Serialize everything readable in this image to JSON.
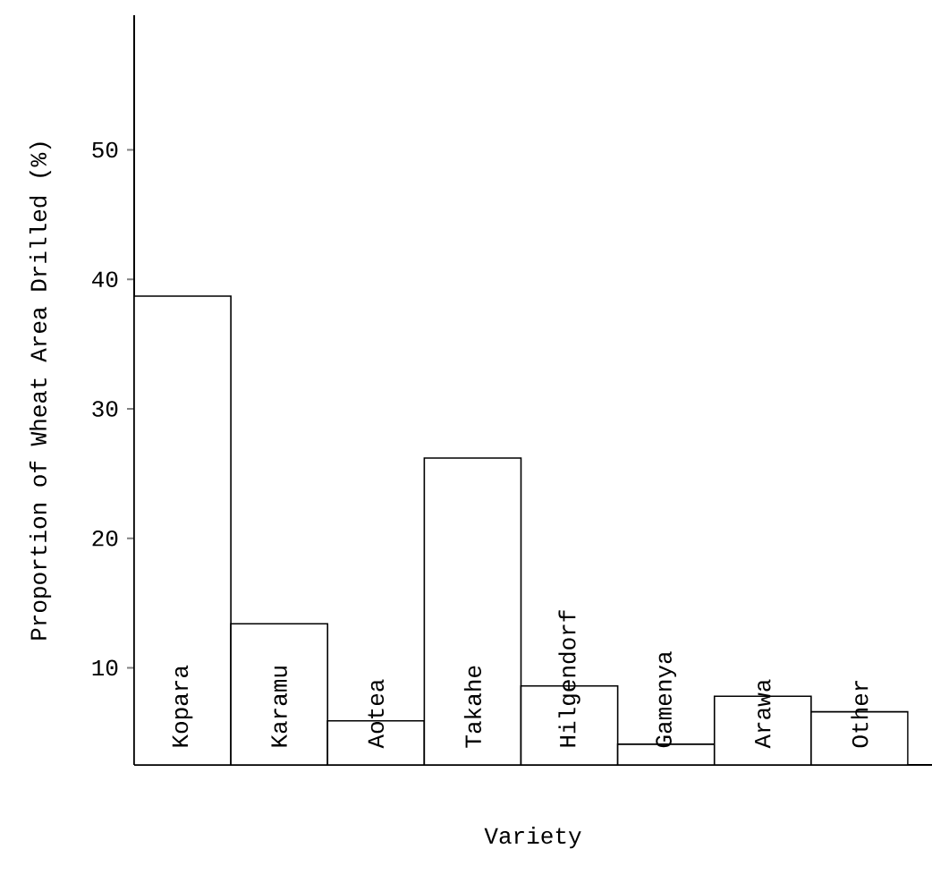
{
  "chart_data": {
    "type": "bar",
    "xlabel": "Variety",
    "ylabel": "Proportion of Wheat Area Drilled (%)",
    "categories": [
      "Kopara",
      "Karamu",
      "Aotea",
      "Takahe",
      "Hilgendorf",
      "Gamenya",
      "Arawa",
      "Other"
    ],
    "values": [
      38.7,
      13.4,
      5.9,
      26.2,
      8.6,
      4.1,
      7.8,
      6.6
    ],
    "color": "#ffffff",
    "ylim": [
      2.5,
      60.4
    ],
    "yticks": [
      10,
      20,
      30,
      40,
      50
    ],
    "grid": false
  }
}
